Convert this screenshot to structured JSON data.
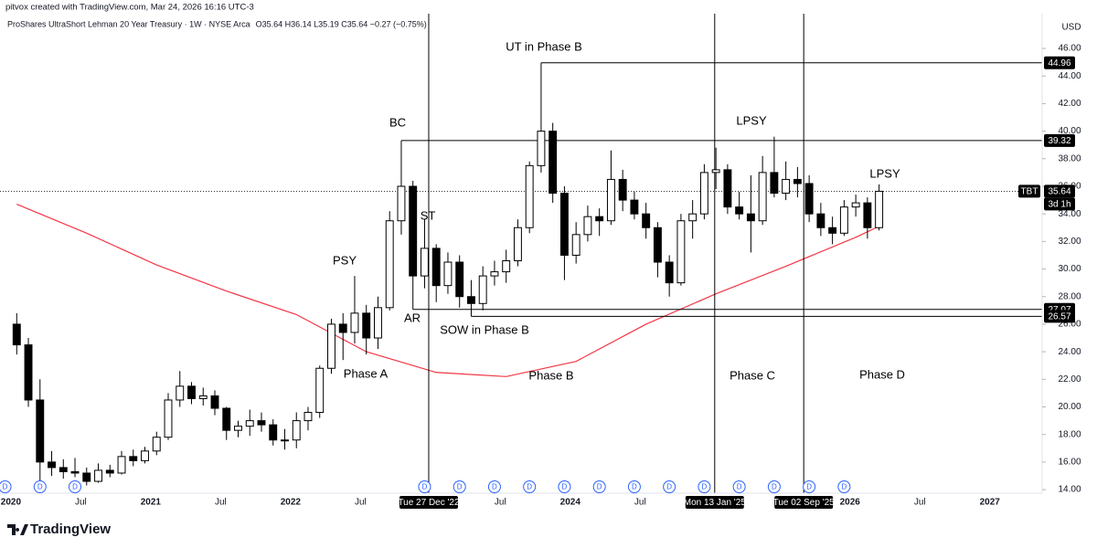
{
  "header": {
    "credit": "pitvox created with TradingView.com, Mar 24, 2026 16:16 UTC-3",
    "symbol_line": "ProShares UltraShort Lehman 20 Year Treasury · 1W · NYSE Arca",
    "ohlc_line": "O35.64 H36.14 L35.19 C35.64 −0.27 (−0.75%)",
    "currency": "USD",
    "brand": "TradingView"
  },
  "chart_data": {
    "type": "candlestick",
    "x": [
      "2020-01",
      "2020-02",
      "2020-03",
      "2020-04",
      "2020-05",
      "2020-06",
      "2020-07",
      "2020-08",
      "2020-09",
      "2020-10",
      "2020-11",
      "2020-12",
      "2021-01",
      "2021-02",
      "2021-03",
      "2021-04",
      "2021-05",
      "2021-06",
      "2021-07",
      "2021-08",
      "2021-09",
      "2021-10",
      "2021-11",
      "2021-12",
      "2022-01",
      "2022-02",
      "2022-03",
      "2022-04",
      "2022-05",
      "2022-06",
      "2022-07",
      "2022-08",
      "2022-09",
      "2022-10",
      "2022-11",
      "2022-12",
      "2023-01",
      "2023-02",
      "2023-03",
      "2023-04",
      "2023-05",
      "2023-06",
      "2023-07",
      "2023-08",
      "2023-09",
      "2023-10",
      "2023-11",
      "2023-12",
      "2024-01",
      "2024-02",
      "2024-03",
      "2024-04",
      "2024-05",
      "2024-06",
      "2024-07",
      "2024-08",
      "2024-09",
      "2024-10",
      "2024-11",
      "2024-12",
      "2025-01",
      "2025-02",
      "2025-03",
      "2025-04",
      "2025-05",
      "2025-06",
      "2025-07",
      "2025-08",
      "2025-09",
      "2025-10",
      "2025-11",
      "2025-12",
      "2026-01",
      "2026-02",
      "2026-03"
    ],
    "open": [
      26.0,
      24.5,
      20.5,
      16.0,
      15.6,
      15.3,
      15.2,
      14.6,
      15.4,
      15.2,
      16.4,
      16.1,
      16.8,
      17.8,
      20.5,
      21.5,
      20.6,
      20.8,
      19.9,
      18.3,
      18.6,
      19.0,
      18.7,
      17.6,
      17.6,
      19.0,
      19.6,
      22.8,
      26.0,
      25.4,
      26.8,
      25.0,
      27.2,
      33.5,
      36.0,
      29.5,
      31.5,
      28.8,
      30.5,
      28.0,
      27.5,
      29.5,
      29.8,
      30.6,
      33.0,
      37.5,
      40.0,
      35.5,
      31.0,
      32.5,
      33.8,
      33.5,
      36.5,
      35.0,
      34.0,
      33.0,
      30.5,
      29.0,
      33.5,
      34.0,
      37.0,
      37.2,
      34.5,
      34.0,
      33.5,
      37.0,
      35.5,
      36.5,
      36.2,
      34.0,
      33.0,
      32.6,
      34.5,
      34.8,
      33.0
    ],
    "high": [
      26.8,
      25.0,
      22.0,
      16.8,
      16.2,
      16.3,
      15.6,
      15.9,
      15.8,
      16.8,
      16.9,
      17.1,
      18.2,
      21.0,
      22.6,
      21.8,
      21.4,
      21.2,
      20.0,
      19.0,
      19.8,
      19.6,
      19.1,
      18.4,
      19.6,
      20.0,
      23.0,
      26.4,
      26.8,
      29.5,
      27.4,
      28.0,
      34.2,
      39.32,
      36.4,
      33.6,
      31.8,
      31.2,
      31.0,
      29.2,
      30.2,
      30.6,
      31.4,
      33.6,
      37.8,
      44.96,
      40.6,
      36.0,
      33.4,
      34.6,
      34.4,
      38.6,
      37.2,
      35.6,
      34.8,
      33.4,
      31.0,
      34.0,
      35.0,
      37.6,
      38.8,
      37.6,
      35.6,
      36.8,
      38.2,
      39.6,
      37.8,
      37.4,
      36.8,
      34.8,
      33.8,
      35.0,
      35.4,
      35.2,
      36.14
    ],
    "low": [
      23.8,
      20.0,
      14.3,
      15.0,
      14.8,
      14.9,
      14.3,
      14.5,
      14.9,
      15.1,
      15.7,
      15.9,
      16.5,
      17.6,
      20.0,
      20.2,
      20.1,
      19.4,
      17.6,
      17.8,
      17.9,
      18.2,
      17.2,
      16.9,
      17.0,
      18.3,
      19.2,
      22.4,
      23.4,
      24.6,
      23.8,
      24.2,
      27.0,
      32.5,
      27.07,
      28.6,
      27.6,
      28.2,
      27.2,
      26.57,
      27.0,
      28.8,
      29.0,
      30.2,
      32.6,
      37.0,
      34.8,
      29.2,
      30.4,
      32.0,
      32.4,
      33.2,
      34.2,
      33.6,
      32.2,
      29.4,
      28.0,
      28.8,
      32.2,
      33.6,
      35.8,
      34.0,
      33.6,
      31.2,
      33.2,
      35.2,
      35.0,
      35.2,
      33.4,
      32.4,
      31.8,
      32.4,
      33.8,
      32.2,
      32.8
    ],
    "close": [
      24.5,
      20.5,
      16.0,
      15.6,
      15.3,
      15.2,
      14.6,
      15.4,
      15.2,
      16.4,
      16.1,
      16.8,
      17.8,
      20.5,
      21.5,
      20.6,
      20.8,
      19.9,
      18.3,
      18.6,
      19.0,
      18.7,
      17.6,
      17.6,
      19.0,
      19.6,
      22.8,
      26.0,
      25.4,
      26.8,
      25.0,
      27.2,
      33.5,
      36.0,
      29.5,
      31.5,
      28.8,
      30.5,
      28.0,
      27.5,
      29.5,
      29.8,
      30.6,
      33.0,
      37.5,
      40.0,
      35.5,
      31.0,
      32.5,
      33.8,
      33.5,
      36.5,
      35.0,
      34.0,
      33.0,
      30.5,
      29.0,
      33.5,
      34.0,
      37.0,
      37.2,
      34.5,
      34.0,
      33.5,
      37.0,
      35.5,
      36.5,
      36.2,
      34.0,
      33.0,
      32.6,
      34.5,
      34.8,
      33.0,
      35.64
    ],
    "up_color": "#ffffff",
    "down_color": "#000000",
    "wick_color": "#000000",
    "moving_average": {
      "color": "#f23645",
      "x": [
        "2020-01",
        "2020-07",
        "2021-01",
        "2021-07",
        "2022-01",
        "2022-07",
        "2023-01",
        "2023-07",
        "2024-01",
        "2024-07",
        "2025-01",
        "2025-07",
        "2026-01",
        "2026-03"
      ],
      "values": [
        34.7,
        32.6,
        30.3,
        28.4,
        26.7,
        24.0,
        22.5,
        22.2,
        23.3,
        26.0,
        28.2,
        30.2,
        32.3,
        33.1
      ]
    },
    "xlim": [
      "2019-12-03",
      "2027-05-16"
    ],
    "xticks": [
      {
        "value": "2020-01-01",
        "label": "2020"
      },
      {
        "value": "2020-07-01",
        "label": "Jul"
      },
      {
        "value": "2021-01-01",
        "label": "2021"
      },
      {
        "value": "2021-07-01",
        "label": "Jul"
      },
      {
        "value": "2022-01-01",
        "label": "2022"
      },
      {
        "value": "2022-07-01",
        "label": "Jul"
      },
      {
        "value": "2023-07-01",
        "label": "Jul"
      },
      {
        "value": "2024-01-01",
        "label": "2024"
      },
      {
        "value": "2024-07-01",
        "label": "Jul"
      },
      {
        "value": "2026-01-01",
        "label": "2026"
      },
      {
        "value": "2026-07-01",
        "label": "Jul"
      },
      {
        "value": "2027-01-01",
        "label": "2027"
      }
    ],
    "ylim": [
      13.74,
      48.52
    ],
    "yticks": [
      {
        "value": 14,
        "label": "14.00"
      },
      {
        "value": 16,
        "label": "16.00"
      },
      {
        "value": 18,
        "label": "18.00"
      },
      {
        "value": 20,
        "label": "20.00"
      },
      {
        "value": 22,
        "label": "22.00"
      },
      {
        "value": 24,
        "label": "24.00"
      },
      {
        "value": 26,
        "label": "26.00"
      },
      {
        "value": 28,
        "label": "28.00"
      },
      {
        "value": 30,
        "label": "30.00"
      },
      {
        "value": 32,
        "label": "32.00"
      },
      {
        "value": 34,
        "label": "34.00"
      },
      {
        "value": 36,
        "label": "36.00"
      },
      {
        "value": 38,
        "label": "38.00"
      },
      {
        "value": 40,
        "label": "40.00"
      },
      {
        "value": 42,
        "label": "42.00"
      },
      {
        "value": 44,
        "label": "44.00"
      },
      {
        "value": 46,
        "label": "46.00"
      }
    ],
    "levels": [
      {
        "start": "2023-10",
        "value": 44.96
      },
      {
        "start": "2022-10",
        "value": 39.32
      },
      {
        "start": "2022-11",
        "value": 27.07
      },
      {
        "start": "2023-04",
        "value": 26.57
      }
    ],
    "date_markers": [
      {
        "value": "2022-12-27",
        "label": "Tue 27 Dec '22"
      },
      {
        "value": "2025-01-13",
        "label": "Mon 13 Jan '25"
      },
      {
        "value": "2025-09-02",
        "label": "Tue 02 Sep '25"
      }
    ],
    "last_price": {
      "symbol": "TBT",
      "value": 35.64,
      "countdown": "3d 1h"
    },
    "dividends": {
      "label": "D",
      "x": [
        "2019-12",
        "2020-03",
        "2020-06",
        "2022-12",
        "2023-03",
        "2023-06",
        "2023-09",
        "2023-12",
        "2024-03",
        "2024-06",
        "2024-09",
        "2024-12",
        "2025-03",
        "2025-06",
        "2025-09",
        "2025-12"
      ]
    },
    "annotations": [
      "UT in Phase B",
      "BC",
      "LPSY",
      "LPSY",
      "ST",
      "PSY",
      "AR",
      "SOW in Phase B",
      "Phase A",
      "Phase B",
      "Phase C",
      "Phase D"
    ]
  }
}
